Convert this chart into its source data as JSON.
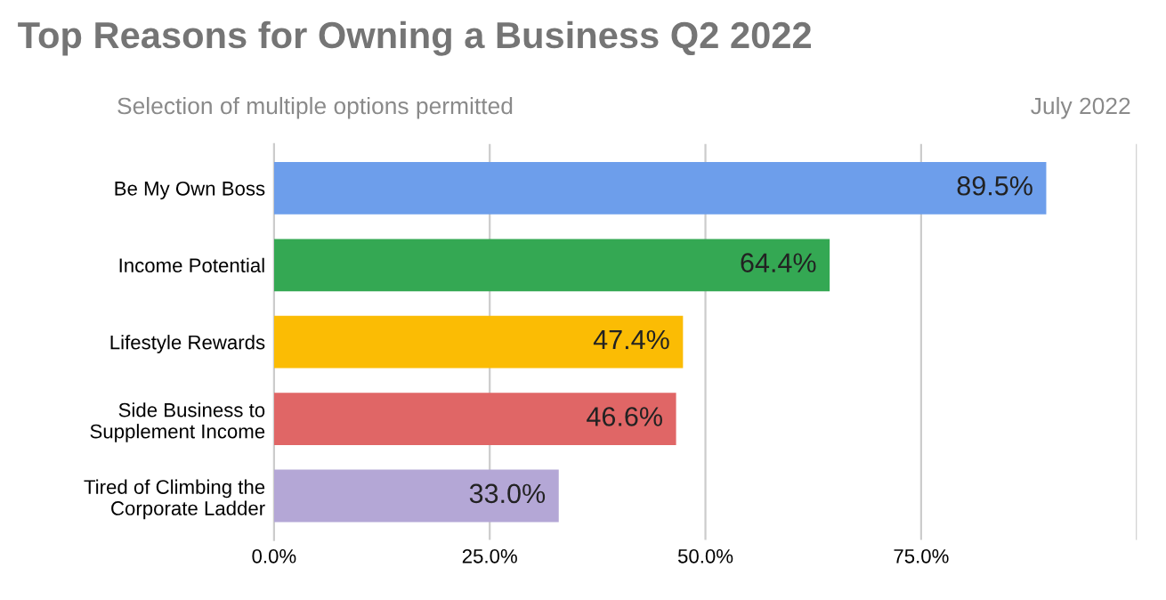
{
  "chart_data": {
    "type": "bar",
    "orientation": "horizontal",
    "title": "Top Reasons for Owning a Business Q2 2022",
    "subtitle": "Selection of multiple options permitted",
    "annotations": [
      "July 2022"
    ],
    "categories": [
      "Be My Own Boss",
      "Income Potential",
      "Lifestyle Rewards",
      "Side Business to\nSupplement Income",
      "Tired of Climbing the\nCorporate Ladder"
    ],
    "values": [
      89.5,
      64.4,
      47.4,
      46.6,
      33.0
    ],
    "colors": [
      "#6d9eeb",
      "#34a853",
      "#fbbc04",
      "#e06666",
      "#b4a7d6"
    ],
    "value_labels": [
      "89.5%",
      "64.4%",
      "47.4%",
      "46.6%",
      "33.0%"
    ],
    "xlim": [
      0,
      100
    ],
    "xticks": [
      {
        "value": 0,
        "label": "0.0%"
      },
      {
        "value": 25,
        "label": "25.0%"
      },
      {
        "value": 50,
        "label": "50.0%"
      },
      {
        "value": 75,
        "label": "75.0%"
      },
      {
        "value": 100,
        "label": null
      }
    ],
    "grid": "x",
    "legend": false
  }
}
